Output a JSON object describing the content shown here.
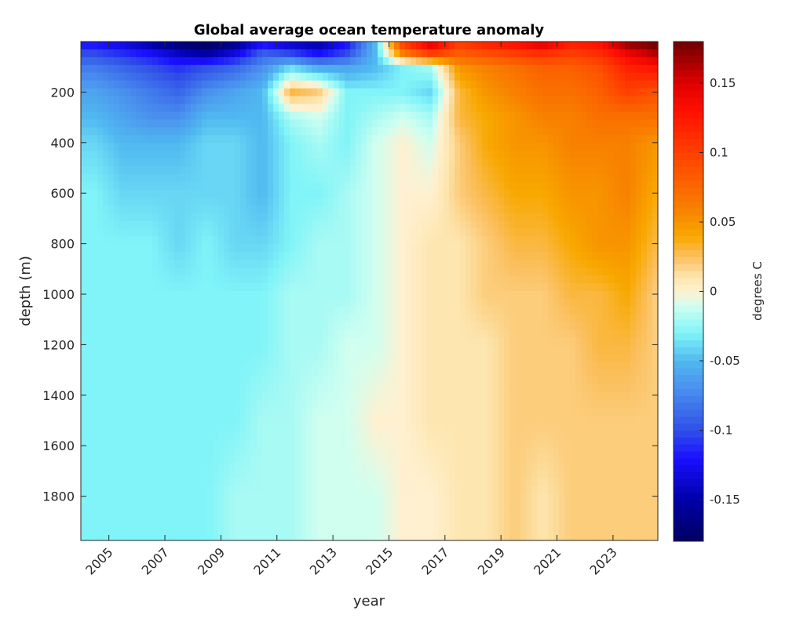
{
  "chart_data": {
    "type": "heatmap",
    "title": "Global average ocean temperature anomaly",
    "xlabel": "year",
    "ylabel": "depth (m)",
    "colorbar_label": "degrees C",
    "xlim": [
      2004.0,
      2024.6
    ],
    "ylim": [
      0,
      1975
    ],
    "y_reversed": true,
    "clim": [
      -0.18,
      0.18
    ],
    "grid": false,
    "xticks": [
      2005,
      2007,
      2009,
      2011,
      2013,
      2015,
      2017,
      2019,
      2021,
      2023
    ],
    "xtick_labels": [
      "2005",
      "2007",
      "2009",
      "2011",
      "2013",
      "2015",
      "2017",
      "2019",
      "2021",
      "2023"
    ],
    "yticks": [
      200,
      400,
      600,
      800,
      1000,
      1200,
      1400,
      1600,
      1800
    ],
    "ytick_labels": [
      "200",
      "400",
      "600",
      "800",
      "1000",
      "1200",
      "1400",
      "1600",
      "1800"
    ],
    "cticks": [
      -0.15,
      -0.1,
      -0.05,
      0,
      0.05,
      0.1,
      0.15
    ],
    "ctick_labels": [
      "-0.15",
      "-0.1",
      "-0.05",
      "0",
      "0.05",
      "0.1",
      "0.15"
    ],
    "colormap": [
      [
        -0.18,
        "#000060"
      ],
      [
        -0.15,
        "#0000a8"
      ],
      [
        -0.12,
        "#1a10ff"
      ],
      [
        -0.1,
        "#3050e8"
      ],
      [
        -0.07,
        "#4a90ee"
      ],
      [
        -0.05,
        "#50b8f0"
      ],
      [
        -0.03,
        "#80f4f8"
      ],
      [
        -0.01,
        "#d0fff0"
      ],
      [
        0,
        "#fff0d0"
      ],
      [
        0.01,
        "#fde6b0"
      ],
      [
        0.025,
        "#fbc060"
      ],
      [
        0.04,
        "#f8a800"
      ],
      [
        0.06,
        "#f88000"
      ],
      [
        0.1,
        "#ff4000"
      ],
      [
        0.13,
        "#ff1000"
      ],
      [
        0.15,
        "#e00000"
      ],
      [
        0.18,
        "#700000"
      ]
    ],
    "x": [
      2004.5,
      2005.5,
      2006.5,
      2007.5,
      2008.5,
      2009.5,
      2010.5,
      2011.5,
      2012.5,
      2013.5,
      2014.5,
      2015.5,
      2016.5,
      2017.5,
      2018.5,
      2019.5,
      2020.5,
      2021.5,
      2022.5,
      2023.5,
      2024.5
    ],
    "depths": [
      10,
      50,
      100,
      200,
      300,
      400,
      600,
      800,
      1000,
      1200,
      1500,
      1800,
      1975
    ],
    "values": [
      [
        -0.12,
        -0.13,
        -0.15,
        -0.17,
        -0.18,
        -0.16,
        -0.12,
        -0.14,
        -0.15,
        -0.12,
        -0.05,
        0.1,
        0.15,
        0.1,
        0.12,
        0.13,
        0.15,
        0.12,
        0.13,
        0.17,
        0.18
      ],
      [
        -0.1,
        -0.11,
        -0.12,
        -0.14,
        -0.15,
        -0.13,
        -0.09,
        -0.1,
        -0.12,
        -0.1,
        -0.05,
        0.06,
        0.1,
        0.08,
        0.09,
        0.1,
        0.11,
        0.1,
        0.11,
        0.14,
        0.16
      ],
      [
        -0.08,
        -0.09,
        -0.1,
        -0.11,
        -0.1,
        -0.09,
        -0.07,
        -0.04,
        -0.06,
        -0.06,
        -0.05,
        -0.03,
        -0.02,
        0.05,
        0.06,
        0.07,
        0.08,
        0.08,
        0.09,
        0.12,
        0.13
      ],
      [
        -0.06,
        -0.07,
        -0.08,
        -0.09,
        -0.07,
        -0.06,
        -0.05,
        0.03,
        0.02,
        -0.03,
        -0.03,
        -0.03,
        -0.04,
        0.03,
        0.05,
        0.06,
        0.07,
        0.07,
        0.08,
        0.1,
        0.09
      ],
      [
        -0.05,
        -0.06,
        -0.07,
        -0.07,
        -0.05,
        -0.05,
        -0.05,
        -0.02,
        -0.01,
        -0.03,
        -0.02,
        -0.01,
        -0.02,
        0.03,
        0.04,
        0.05,
        0.06,
        0.06,
        0.07,
        0.07,
        0.07
      ],
      [
        -0.04,
        -0.05,
        -0.05,
        -0.05,
        -0.04,
        -0.04,
        -0.05,
        -0.03,
        -0.02,
        -0.03,
        -0.01,
        0.0,
        -0.01,
        0.02,
        0.04,
        0.05,
        0.05,
        0.06,
        0.06,
        0.06,
        0.05
      ],
      [
        -0.03,
        -0.04,
        -0.04,
        -0.04,
        -0.04,
        -0.04,
        -0.05,
        -0.03,
        -0.03,
        -0.02,
        -0.01,
        0.0,
        0.0,
        0.02,
        0.03,
        0.04,
        0.04,
        0.05,
        0.05,
        0.06,
        0.04
      ],
      [
        -0.03,
        -0.03,
        -0.03,
        -0.04,
        -0.03,
        -0.04,
        -0.04,
        -0.03,
        -0.02,
        -0.02,
        -0.01,
        0.0,
        0.01,
        0.01,
        0.02,
        0.03,
        0.03,
        0.04,
        0.05,
        0.05,
        0.03
      ],
      [
        -0.03,
        -0.03,
        -0.03,
        -0.03,
        -0.03,
        -0.03,
        -0.03,
        -0.02,
        -0.02,
        -0.02,
        -0.01,
        0.0,
        0.01,
        0.01,
        0.02,
        0.02,
        0.02,
        0.03,
        0.03,
        0.04,
        0.02
      ],
      [
        -0.03,
        -0.03,
        -0.03,
        -0.03,
        -0.03,
        -0.03,
        -0.03,
        -0.02,
        -0.02,
        -0.01,
        -0.01,
        0.0,
        0.01,
        0.01,
        0.01,
        0.02,
        0.02,
        0.02,
        0.03,
        0.03,
        0.02
      ],
      [
        -0.03,
        -0.03,
        -0.03,
        -0.03,
        -0.03,
        -0.03,
        -0.02,
        -0.02,
        -0.01,
        -0.01,
        0.0,
        0.0,
        0.01,
        0.01,
        0.01,
        0.02,
        0.02,
        0.02,
        0.02,
        0.02,
        0.02
      ],
      [
        -0.03,
        -0.03,
        -0.03,
        -0.03,
        -0.03,
        -0.02,
        -0.02,
        -0.02,
        -0.01,
        -0.01,
        -0.01,
        0.0,
        0.0,
        0.01,
        0.01,
        0.02,
        0.01,
        0.02,
        0.02,
        0.02,
        0.02
      ],
      [
        -0.03,
        -0.03,
        -0.03,
        -0.03,
        -0.03,
        -0.02,
        -0.02,
        -0.02,
        -0.01,
        -0.01,
        -0.01,
        0.0,
        0.0,
        0.01,
        0.01,
        0.02,
        0.01,
        0.02,
        0.02,
        0.02,
        0.02
      ]
    ]
  }
}
